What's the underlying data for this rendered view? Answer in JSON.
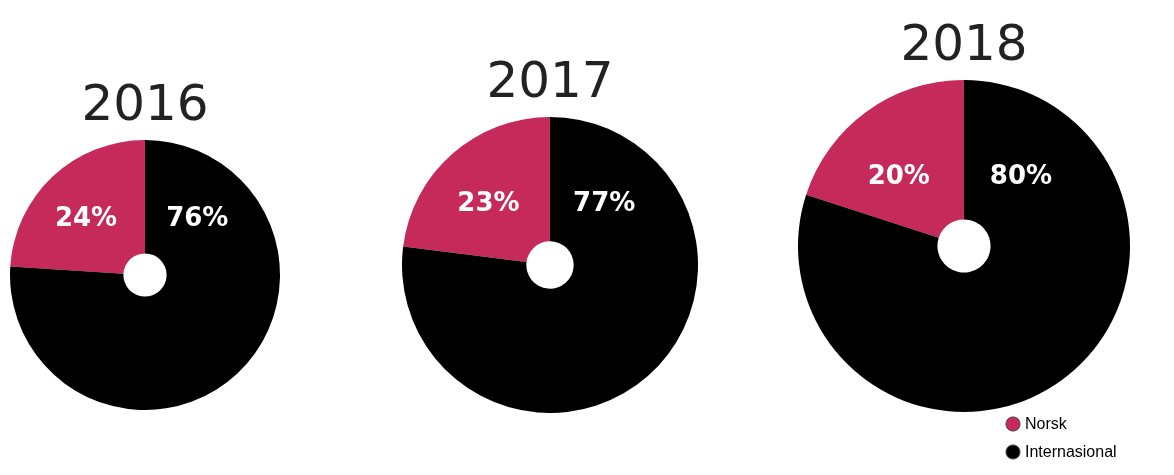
{
  "chart_data": [
    {
      "type": "donut",
      "title": "2016",
      "categories": [
        null,
        null
      ],
      "values": [
        24,
        76
      ],
      "colors": [
        "#c52a5a",
        "#000000"
      ],
      "data_labels": true,
      "value_labels": [
        "24%",
        "76%"
      ],
      "legend": false
    },
    {
      "type": "donut",
      "title": "2017",
      "categories": [
        null,
        null
      ],
      "values": [
        23,
        77
      ],
      "colors": [
        "#c52a5a",
        "#000000"
      ],
      "data_labels": true,
      "value_labels": [
        "23%",
        "77%"
      ],
      "legend": false
    },
    {
      "type": "donut",
      "title": "2018",
      "categories": [
        "Norsk",
        "Internasional"
      ],
      "values": [
        20,
        80
      ],
      "colors": [
        "#c52a5a",
        "#000000"
      ],
      "data_labels": true,
      "value_labels": [
        "20%",
        "80%"
      ],
      "legend": "bottom right"
    }
  ]
}
